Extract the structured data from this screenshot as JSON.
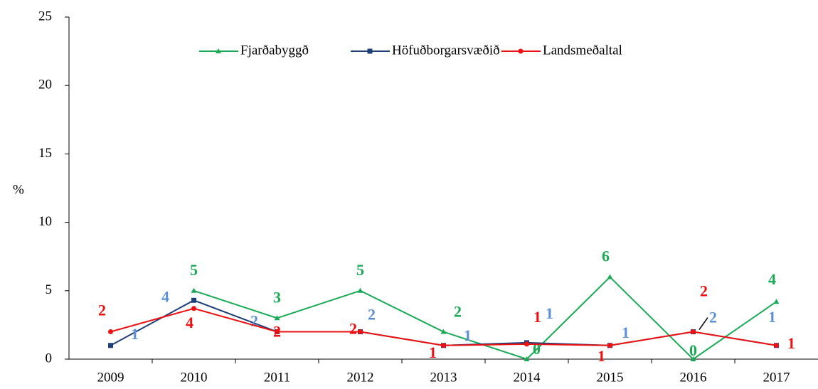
{
  "chart_data": {
    "type": "line",
    "y_label": "%",
    "categories": [
      "2009",
      "2010",
      "2011",
      "2012",
      "2013",
      "2014",
      "2015",
      "2016",
      "2017"
    ],
    "series": [
      {
        "name": "Fjarðabyggð",
        "color": "#1aaa55",
        "marker": "triangle",
        "label_color": "#1aaa55",
        "values": [
          null,
          5,
          3,
          5,
          2,
          0,
          6,
          0,
          4.2
        ],
        "value_labels": [
          null,
          "5",
          "3",
          "5",
          "2",
          "0",
          "6",
          "0",
          "4"
        ]
      },
      {
        "name": "Höfuðborgarsvæðið",
        "color": "#1f3f7a",
        "marker": "square",
        "label_color": "#5b8fd6",
        "values": [
          1,
          4.3,
          2,
          2,
          1,
          1.2,
          1,
          2,
          1
        ],
        "value_labels": [
          "1",
          "4",
          "2",
          "2",
          "1",
          "1",
          "1",
          "2",
          "1"
        ]
      },
      {
        "name": "Landsmeðaltal",
        "color": "#ee1111",
        "marker": "circle",
        "label_color": "#ee1111",
        "values": [
          2,
          3.7,
          2,
          2,
          1,
          1.1,
          1,
          2,
          1
        ],
        "value_labels": [
          "2",
          "4",
          "2",
          "2",
          "1",
          "1",
          "1",
          "2",
          "1"
        ]
      }
    ],
    "ylim": [
      0,
      25
    ],
    "yticks": [
      0,
      5,
      10,
      15,
      20,
      25
    ],
    "grid": false
  }
}
